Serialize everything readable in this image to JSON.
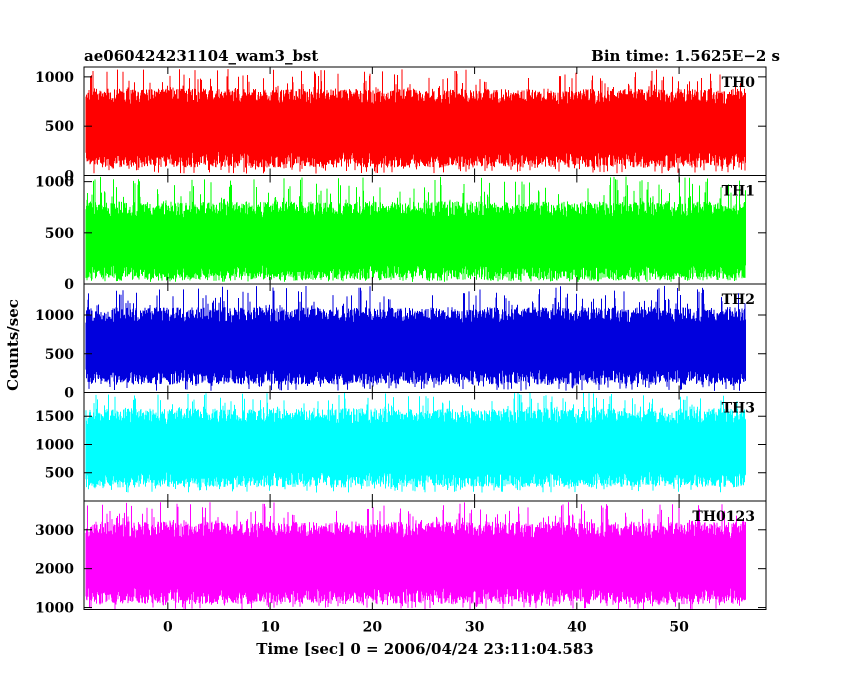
{
  "header": {
    "title": "ae060424231104_wam3_bst",
    "bin_time": "Bin time: 1.5625E−2 s"
  },
  "chart_data": {
    "type": "line",
    "title": "ae060424231104_wam3_bst",
    "subtitle": "Bin time: 1.5625E−2 s",
    "xlabel": "Time [sec] 0 = 2006/04/24 23:11:04.583",
    "ylabel": "Counts/sec",
    "xlim": [
      -8.2,
      58.5
    ],
    "data_xrange": [
      -8.0,
      56.5
    ],
    "xticks": [
      0,
      10,
      20,
      30,
      40,
      50
    ],
    "xtick_labels": [
      "0",
      "10",
      "20",
      "30",
      "40",
      "50"
    ],
    "grid": false,
    "panels": [
      {
        "name": "TH0",
        "color": "#ff0000",
        "ylim": [
          0,
          1100
        ],
        "yticks": [
          0,
          500,
          1000
        ],
        "ytick_labels": [
          "0",
          "500",
          "1000"
        ],
        "band_low": 160,
        "band_high": 800,
        "spike_min": 20,
        "spike_max": 1080
      },
      {
        "name": "TH1",
        "color": "#00ff00",
        "ylim": [
          0,
          1060
        ],
        "yticks": [
          0,
          500,
          1000
        ],
        "ytick_labels": [
          "0",
          "500",
          "1000"
        ],
        "band_low": 110,
        "band_high": 730,
        "spike_min": 20,
        "spike_max": 1050
      },
      {
        "name": "TH2",
        "color": "#0000dd",
        "ylim": [
          0,
          1400
        ],
        "yticks": [
          0,
          500,
          1000
        ],
        "ytick_labels": [
          "0",
          "500",
          "1000"
        ],
        "band_low": 200,
        "band_high": 1000,
        "spike_min": 20,
        "spike_max": 1380
      },
      {
        "name": "TH3",
        "color": "#00ffff",
        "ylim": [
          0,
          1920
        ],
        "yticks": [
          500,
          1000,
          1500
        ],
        "ytick_labels": [
          "500",
          "1000",
          "1500"
        ],
        "band_low": 380,
        "band_high": 1500,
        "spike_min": 150,
        "spike_max": 1920
      },
      {
        "name": "TH0123",
        "color": "#ff00ff",
        "ylim": [
          950,
          3740
        ],
        "yticks": [
          1000,
          2000,
          3000
        ],
        "ytick_labels": [
          "1000",
          "2000",
          "3000"
        ],
        "band_low": 1300,
        "band_high": 3000,
        "spike_min": 950,
        "spike_max": 3720
      }
    ]
  }
}
